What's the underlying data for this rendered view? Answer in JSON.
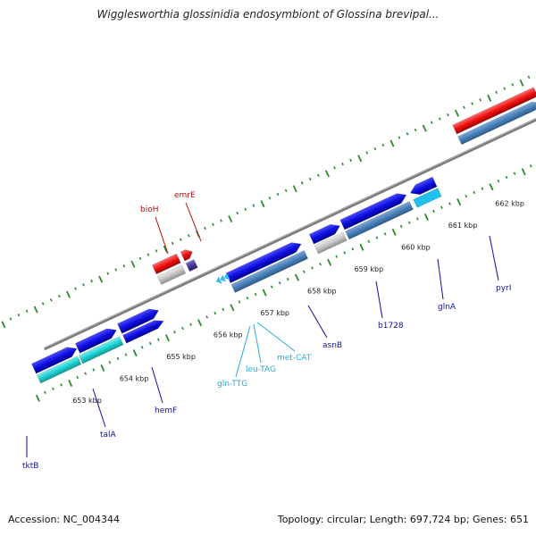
{
  "title": "Wigglesworthia glossinidia endosymbiont of Glossina brevipal...",
  "footer": {
    "accession": "Accession: NC_004344",
    "topology": "Topology: circular; Length: 697,724 bp; Genes: 651"
  },
  "ruler_labels": [
    "653 kbp",
    "654 kbp",
    "655 kbp",
    "656 kbp",
    "657 kbp",
    "658 kbp",
    "659 kbp",
    "660 kbp",
    "661 kbp",
    "662 kbp"
  ],
  "gene_labels": {
    "bioH": "bioH",
    "emrE": "emrE",
    "tktB": "tktB",
    "talA": "talA",
    "hemF": "hemF",
    "asnB": "asnB",
    "b1728": "b1728",
    "glnA": "glnA",
    "pyrI": "pyrI",
    "gln_ttg": "gln-TTG",
    "leu_tag": "leu-TAG",
    "met_cat": "met-CAT"
  },
  "colors": {
    "forward_gene": "#1010e0",
    "reverse_gene_red": "#ee1111",
    "cds_steelblue": "#4a80b8",
    "cds_cyan": "#20d0d0",
    "gray_gene": "#c4c4c4",
    "dark_purple": "#4a3a9a",
    "trna": "#33bbee",
    "backbone": "#888888",
    "ticks": "#2a8a2a",
    "label_red": "#b01010",
    "label_blue": "#1010a0",
    "label_cyan": "#2aaad8"
  }
}
